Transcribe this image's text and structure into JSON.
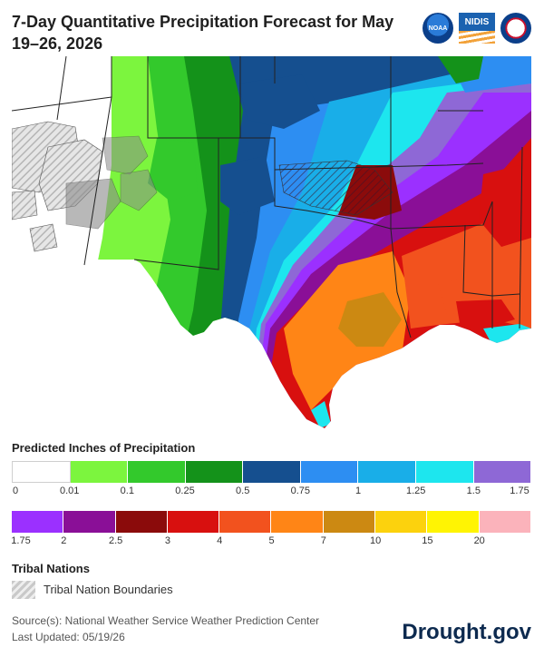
{
  "title": "7-Day Quantitative Precipitation Forecast for May 19–26, 2026",
  "logos": {
    "noaa": "NOAA",
    "nidis": "NIDIS",
    "nws": "National Weather Service"
  },
  "legend": {
    "title": "Predicted Inches of Precipitation",
    "row1": {
      "colors": [
        "#ffffff",
        "#7cf53e",
        "#33c92c",
        "#14921a",
        "#154f8f",
        "#2d8ef2",
        "#19aee8",
        "#1de6ee",
        "#8e68d6"
      ],
      "labels": [
        "0",
        "0.01",
        "0.1",
        "0.25",
        "0.5",
        "0.75",
        "1",
        "1.25",
        "1.5",
        "1.75"
      ]
    },
    "row2": {
      "colors": [
        "#9b30ff",
        "#8a0f97",
        "#8b0b0b",
        "#d8100f",
        "#f2521e",
        "#ff8516",
        "#cc8912",
        "#fcd20d",
        "#fff403",
        "#fbb3bb"
      ],
      "labels": [
        "1.75",
        "2",
        "2.5",
        "3",
        "4",
        "5",
        "7",
        "10",
        "15",
        "20"
      ]
    }
  },
  "tribal": {
    "title": "Tribal Nations",
    "label": "Tribal Nation Boundaries"
  },
  "source": "Source(s): National Weather Service Weather Prediction Center",
  "updated": "Last Updated: 05/19/26",
  "brand": "Drought.gov"
}
